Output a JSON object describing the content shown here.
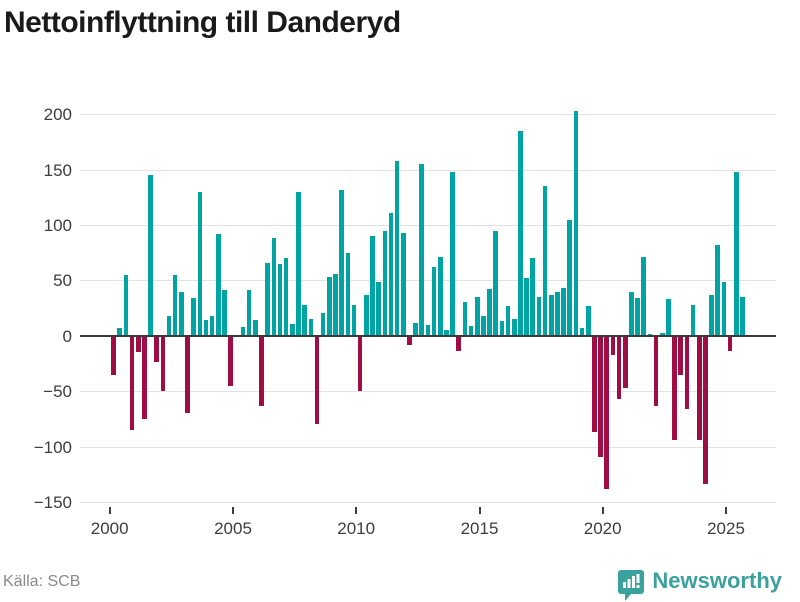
{
  "title": "Nettoinflyttning till Danderyd",
  "source": {
    "label": "Källa: SCB"
  },
  "branding": {
    "name": "Newsworthy",
    "icon": "bar-chart-speech-pin",
    "color": "#3aa19d"
  },
  "colors": {
    "positive_bar": "#00a5a3",
    "negative_bar": "#a00d45",
    "gridline": "#e2e2e2",
    "zero_line": "#3a3a3a",
    "axis_text": "#3d3d3d",
    "title_text": "#1a1a1a",
    "source_text": "#8a8a8a"
  },
  "chart_data": {
    "type": "bar",
    "title": "Nettoinflyttning till Danderyd",
    "xlabel": "",
    "ylabel": "",
    "frequency": "quarterly",
    "start_year": 2000,
    "start_quarter": 1,
    "ylim": [
      -150,
      210
    ],
    "grid": true,
    "y_ticks": [
      {
        "v": 200,
        "label": "200"
      },
      {
        "v": 150,
        "label": "150"
      },
      {
        "v": 100,
        "label": "100"
      },
      {
        "v": 50,
        "label": "50"
      },
      {
        "v": 0,
        "label": "0"
      },
      {
        "v": -50,
        "label": "−50"
      },
      {
        "v": -100,
        "label": "−100"
      },
      {
        "v": -150,
        "label": "−150"
      }
    ],
    "x_tick_labels": [
      "2000",
      "2005",
      "2010",
      "2015",
      "2020",
      "2025"
    ],
    "values": [
      -35,
      7,
      55,
      -85,
      -15,
      -75,
      145,
      -24,
      -50,
      18,
      55,
      40,
      -70,
      34,
      130,
      14,
      18,
      92,
      41,
      -45,
      0,
      8,
      41,
      14,
      -63,
      66,
      88,
      65,
      70,
      11,
      130,
      28,
      15,
      -80,
      21,
      53,
      56,
      132,
      75,
      28,
      -50,
      37,
      90,
      49,
      95,
      111,
      158,
      93,
      -8,
      12,
      155,
      10,
      62,
      71,
      5,
      148,
      -14,
      31,
      9,
      35,
      18,
      42,
      95,
      13,
      27,
      15,
      185,
      52,
      70,
      35,
      135,
      37,
      40,
      43,
      105,
      203,
      7,
      27,
      -87,
      -109,
      -138,
      -17,
      -57,
      -47,
      40,
      34,
      71,
      2,
      -63,
      3,
      33,
      -94,
      -35,
      -66,
      28,
      -94,
      -134,
      37,
      82,
      49,
      -14,
      148,
      35
    ]
  }
}
